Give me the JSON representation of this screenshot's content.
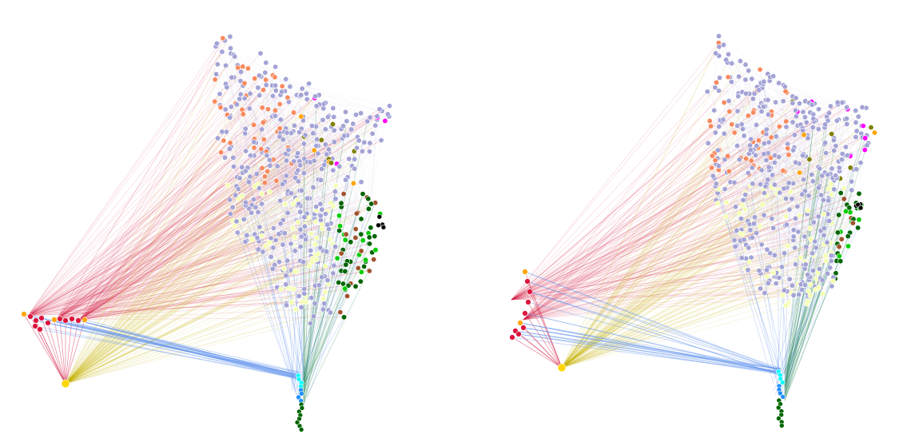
{
  "figure": {
    "description_text": "",
    "panels": [
      {
        "id": "left",
        "node_group_colors": [
          "#a3a3d6",
          "#f88a5e",
          "#ff00ff",
          "#808000",
          "#f4ffb3",
          "#00cc00",
          "#006400",
          "#dc143c",
          "#ffd700",
          "#1e90ff",
          "#00ffff",
          "#000000",
          "#a0522d",
          "#9370db",
          "#ffa500"
        ],
        "edge_colors": [
          "#d2143c",
          "#c8b400",
          "#6495ed",
          "#2e8b57",
          "#a3a3d6"
        ]
      },
      {
        "id": "right",
        "node_group_colors": [
          "#a3a3d6",
          "#f88a5e",
          "#ff00ff",
          "#808000",
          "#f4ffb3",
          "#00cc00",
          "#006400",
          "#dc143c",
          "#ffd700",
          "#1e90ff",
          "#00ffff",
          "#000000",
          "#a0522d",
          "#9370db",
          "#ffa500"
        ],
        "edge_colors": [
          "#d2143c",
          "#c8b400",
          "#6495ed",
          "#2e8b57",
          "#a3a3d6"
        ]
      }
    ]
  }
}
